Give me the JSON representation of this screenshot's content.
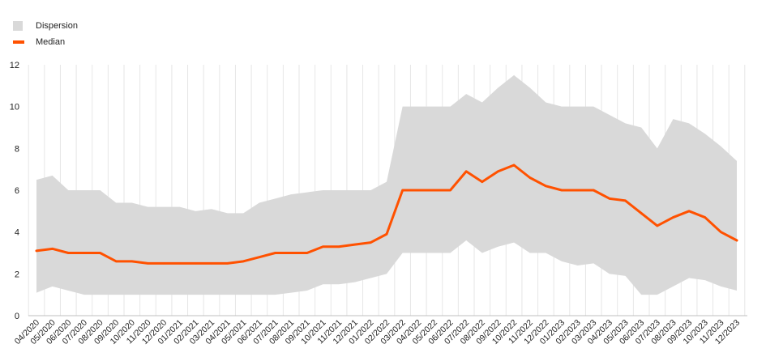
{
  "chart_data": {
    "type": "area",
    "x": [
      "04/2020",
      "05/2020",
      "06/2020",
      "07/2020",
      "08/2020",
      "09/2020",
      "10/2020",
      "11/2020",
      "12/2020",
      "01/2021",
      "02/2021",
      "03/2021",
      "04/2021",
      "05/2021",
      "06/2021",
      "07/2021",
      "08/2021",
      "09/2021",
      "10/2021",
      "11/2021",
      "12/2021",
      "01/2022",
      "02/2022",
      "03/2022",
      "04/2022",
      "05/2022",
      "06/2022",
      "07/2022",
      "08/2022",
      "09/2022",
      "10/2022",
      "11/2022",
      "12/2022",
      "01/2023",
      "02/2023",
      "03/2023",
      "04/2023",
      "05/2023",
      "06/2023",
      "07/2023",
      "08/2023",
      "09/2023",
      "10/2023",
      "11/2023",
      "12/2023"
    ],
    "y_ticks": [
      "0",
      "2",
      "4",
      "6",
      "8",
      "10",
      "12"
    ],
    "ylim": [
      0,
      12
    ],
    "grid": "vertical",
    "legend": "top-left",
    "series": [
      {
        "name": "Dispersion",
        "kind": "band",
        "color": "#d9d9d9",
        "upper": [
          6.5,
          6.7,
          6.0,
          6.0,
          6.0,
          5.4,
          5.4,
          5.2,
          5.2,
          5.2,
          5.0,
          5.1,
          4.9,
          4.9,
          5.4,
          5.6,
          5.8,
          5.9,
          6.0,
          6.0,
          6.0,
          6.0,
          6.4,
          10.0,
          10.0,
          10.0,
          10.0,
          10.6,
          10.2,
          10.9,
          11.5,
          10.9,
          10.2,
          10.0,
          10.0,
          10.0,
          9.6,
          9.2,
          9.0,
          8.0,
          9.4,
          9.2,
          8.7,
          8.1,
          7.4
        ],
        "lower": [
          1.1,
          1.4,
          1.2,
          1.0,
          1.0,
          1.0,
          1.0,
          1.0,
          1.0,
          1.0,
          1.0,
          1.0,
          1.0,
          1.0,
          1.0,
          1.0,
          1.1,
          1.2,
          1.5,
          1.5,
          1.6,
          1.8,
          2.0,
          3.0,
          3.0,
          3.0,
          3.0,
          3.6,
          3.0,
          3.3,
          3.5,
          3.0,
          3.0,
          2.6,
          2.4,
          2.5,
          2.0,
          1.9,
          1.0,
          1.0,
          1.4,
          1.8,
          1.7,
          1.4,
          1.2
        ]
      },
      {
        "name": "Median",
        "kind": "line",
        "color": "#ff5100",
        "values": [
          3.1,
          3.2,
          3.0,
          3.0,
          3.0,
          2.6,
          2.6,
          2.5,
          2.5,
          2.5,
          2.5,
          2.5,
          2.5,
          2.6,
          2.8,
          3.0,
          3.0,
          3.0,
          3.3,
          3.3,
          3.4,
          3.5,
          3.9,
          6.0,
          6.0,
          6.0,
          6.0,
          6.9,
          6.4,
          6.9,
          7.2,
          6.6,
          6.2,
          6.0,
          6.0,
          6.0,
          5.6,
          5.5,
          4.9,
          4.3,
          4.7,
          5.0,
          4.7,
          4.0,
          3.6
        ]
      }
    ]
  }
}
